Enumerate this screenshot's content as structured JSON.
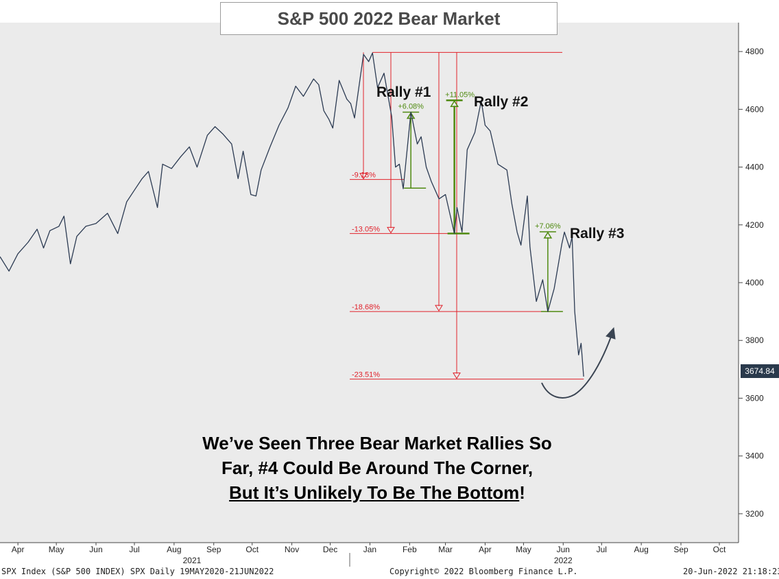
{
  "colors": {
    "plot_bg": "#ebebeb",
    "line": "#2b3a52",
    "drawdown": "#e0202a",
    "rally": "#4f8a10",
    "arrow": "#3a4452"
  },
  "title": "S&P 500 2022 Bear Market",
  "rally_labels": [
    "Rally #1",
    "Rally #2",
    "Rally #3"
  ],
  "caption": {
    "line1": "We’ve Seen Three Bear Market Rallies So",
    "line2": "Far, #4 Could Be Around The Corner,",
    "line3_underlined": "But It’s Unlikely To Be The Bottom",
    "line3_tail": "!"
  },
  "footer": {
    "left": "SPX Index (S&P 500 INDEX) SPX  Daily 19MAY2020-21JUN2022",
    "center": "Copyright© 2022 Bloomberg Finance L.P.",
    "right": "20-Jun-2022 21:18:23"
  },
  "price_tag": "3674.84",
  "chart_data": {
    "type": "line",
    "title": "S&P 500 2022 Bear Market",
    "ylim": [
      3100,
      4900
    ],
    "y_axis_side": "right",
    "y_ticks": [
      3200,
      3400,
      3600,
      3800,
      4000,
      4200,
      4400,
      4600,
      4800
    ],
    "x_ticks": [
      {
        "label": "Apr",
        "x": "2021-04-01"
      },
      {
        "label": "May",
        "x": "2021-05-01"
      },
      {
        "label": "Jun",
        "x": "2021-06-01"
      },
      {
        "label": "Jul",
        "x": "2021-07-01"
      },
      {
        "label": "Aug",
        "x": "2021-08-01"
      },
      {
        "label": "Sep",
        "x": "2021-09-01"
      },
      {
        "label": "Oct",
        "x": "2021-10-01"
      },
      {
        "label": "Nov",
        "x": "2021-11-01"
      },
      {
        "label": "Dec",
        "x": "2021-12-01"
      },
      {
        "label": "Jan",
        "x": "2022-01-01"
      },
      {
        "label": "Feb",
        "x": "2022-02-01"
      },
      {
        "label": "Mar",
        "x": "2022-03-01"
      },
      {
        "label": "Apr",
        "x": "2022-04-01"
      },
      {
        "label": "May",
        "x": "2022-05-01"
      },
      {
        "label": "Jun",
        "x": "2022-06-01"
      },
      {
        "label": "Jul",
        "x": "2022-07-01"
      },
      {
        "label": "Aug",
        "x": "2022-08-01"
      },
      {
        "label": "Sep",
        "x": "2022-09-01"
      },
      {
        "label": "Oct",
        "x": "2022-10-01"
      }
    ],
    "year_labels": [
      {
        "label": "2021",
        "x": "2021-08-15"
      },
      {
        "label": "2022",
        "x": "2022-06-01"
      }
    ],
    "x_range": [
      "2021-03-18",
      "2022-10-16"
    ],
    "series": [
      {
        "values": [
          [
            "2021-03-18",
            4090
          ],
          [
            "2021-03-25",
            4040
          ],
          [
            "2021-04-01",
            4100
          ],
          [
            "2021-04-09",
            4140
          ],
          [
            "2021-04-16",
            4185
          ],
          [
            "2021-04-21",
            4120
          ],
          [
            "2021-04-26",
            4180
          ],
          [
            "2021-05-03",
            4195
          ],
          [
            "2021-05-07",
            4230
          ],
          [
            "2021-05-12",
            4065
          ],
          [
            "2021-05-17",
            4160
          ],
          [
            "2021-05-24",
            4195
          ],
          [
            "2021-06-01",
            4205
          ],
          [
            "2021-06-10",
            4240
          ],
          [
            "2021-06-18",
            4170
          ],
          [
            "2021-06-25",
            4280
          ],
          [
            "2021-07-01",
            4320
          ],
          [
            "2021-07-07",
            4360
          ],
          [
            "2021-07-12",
            4385
          ],
          [
            "2021-07-19",
            4260
          ],
          [
            "2021-07-23",
            4410
          ],
          [
            "2021-07-30",
            4395
          ],
          [
            "2021-08-06",
            4435
          ],
          [
            "2021-08-13",
            4470
          ],
          [
            "2021-08-19",
            4400
          ],
          [
            "2021-08-27",
            4510
          ],
          [
            "2021-09-02",
            4540
          ],
          [
            "2021-09-08",
            4515
          ],
          [
            "2021-09-15",
            4480
          ],
          [
            "2021-09-20",
            4360
          ],
          [
            "2021-09-24",
            4455
          ],
          [
            "2021-09-30",
            4305
          ],
          [
            "2021-10-04",
            4300
          ],
          [
            "2021-10-08",
            4390
          ],
          [
            "2021-10-15",
            4470
          ],
          [
            "2021-10-22",
            4545
          ],
          [
            "2021-10-29",
            4605
          ],
          [
            "2021-11-04",
            4680
          ],
          [
            "2021-11-10",
            4645
          ],
          [
            "2021-11-18",
            4705
          ],
          [
            "2021-11-22",
            4685
          ],
          [
            "2021-11-26",
            4595
          ],
          [
            "2021-11-30",
            4565
          ],
          [
            "2021-12-03",
            4535
          ],
          [
            "2021-12-08",
            4700
          ],
          [
            "2021-12-14",
            4635
          ],
          [
            "2021-12-17",
            4620
          ],
          [
            "2021-12-20",
            4570
          ],
          [
            "2021-12-27",
            4790
          ],
          [
            "2021-12-31",
            4765
          ],
          [
            "2022-01-03",
            4795
          ],
          [
            "2022-01-07",
            4675
          ],
          [
            "2022-01-12",
            4725
          ],
          [
            "2022-01-18",
            4575
          ],
          [
            "2022-01-21",
            4400
          ],
          [
            "2022-01-24",
            4410
          ],
          [
            "2022-01-27",
            4325
          ],
          [
            "2022-01-31",
            4500
          ],
          [
            "2022-02-02",
            4590
          ],
          [
            "2022-02-07",
            4480
          ],
          [
            "2022-02-10",
            4505
          ],
          [
            "2022-02-14",
            4400
          ],
          [
            "2022-02-18",
            4350
          ],
          [
            "2022-02-24",
            4290
          ],
          [
            "2022-03-01",
            4305
          ],
          [
            "2022-03-08",
            4170
          ],
          [
            "2022-03-10",
            4260
          ],
          [
            "2022-03-14",
            4175
          ],
          [
            "2022-03-18",
            4460
          ],
          [
            "2022-03-24",
            4520
          ],
          [
            "2022-03-29",
            4630
          ],
          [
            "2022-04-01",
            4545
          ],
          [
            "2022-04-05",
            4525
          ],
          [
            "2022-04-11",
            4410
          ],
          [
            "2022-04-18",
            4390
          ],
          [
            "2022-04-22",
            4270
          ],
          [
            "2022-04-26",
            4175
          ],
          [
            "2022-04-29",
            4130
          ],
          [
            "2022-05-04",
            4300
          ],
          [
            "2022-05-06",
            4125
          ],
          [
            "2022-05-11",
            3935
          ],
          [
            "2022-05-16",
            4010
          ],
          [
            "2022-05-20",
            3900
          ],
          [
            "2022-05-25",
            3980
          ],
          [
            "2022-05-31",
            4135
          ],
          [
            "2022-06-02",
            4175
          ],
          [
            "2022-06-06",
            4120
          ],
          [
            "2022-06-08",
            4160
          ],
          [
            "2022-06-10",
            3900
          ],
          [
            "2022-06-13",
            3750
          ],
          [
            "2022-06-15",
            3790
          ],
          [
            "2022-06-17",
            3674.84
          ]
        ]
      }
    ],
    "annotations": {
      "peak_level": 4797,
      "drawdowns": [
        {
          "label": "-9.18%",
          "level": 4357,
          "from": "2022-01-03",
          "to": "2022-01-27"
        },
        {
          "label": "-13.05%",
          "level": 4170,
          "from": "2022-01-03",
          "to": "2022-03-08"
        },
        {
          "label": "-18.68%",
          "level": 3900,
          "from": "2022-01-03",
          "to": "2022-05-20"
        },
        {
          "label": "-23.51%",
          "level": 3666,
          "from": "2022-01-03",
          "to": "2022-06-16"
        }
      ],
      "rallies": [
        {
          "label": "+6.08%",
          "from_level": 4327,
          "to_level": 4590,
          "date": "2022-02-02"
        },
        {
          "label": "+11.05%",
          "from_level": 4170,
          "to_level": 4631,
          "date": "2022-03-08"
        },
        {
          "label": "+7.06%",
          "from_level": 3900,
          "to_level": 4176,
          "date": "2022-05-20"
        }
      ]
    }
  }
}
